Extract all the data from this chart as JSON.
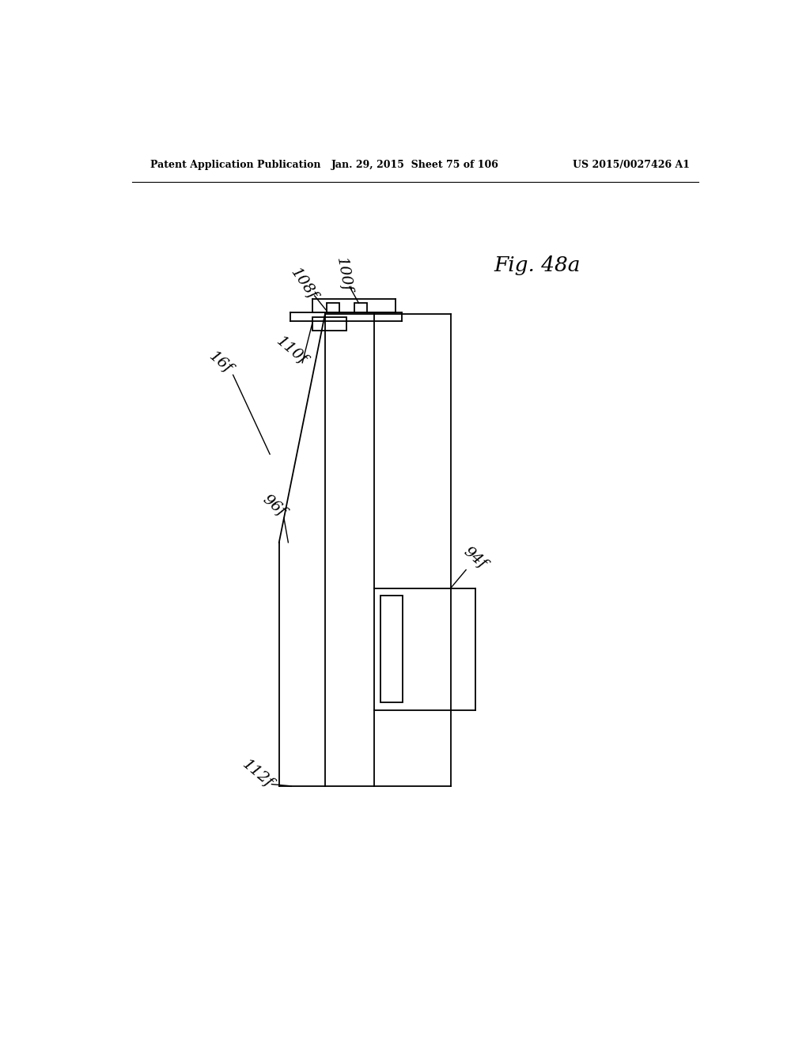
{
  "bg_color": "#ffffff",
  "header_left": "Patent Application Publication",
  "header_mid": "Jan. 29, 2015  Sheet 75 of 106",
  "header_right": "US 2015/0027426 A1",
  "fig_label": "Fig. 48a",
  "line_color": "#000000",
  "lw": 1.3
}
